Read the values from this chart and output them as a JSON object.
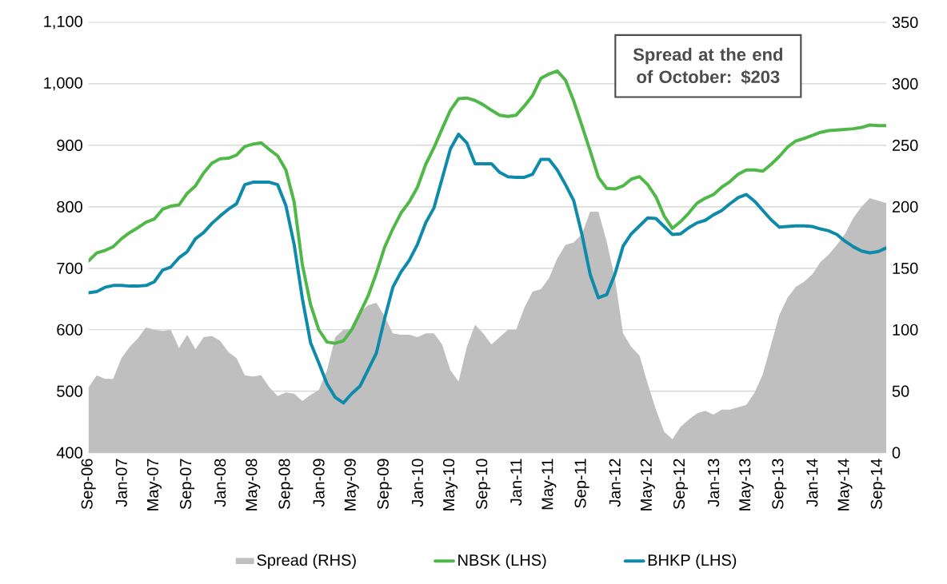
{
  "chart_data": {
    "type": "line",
    "categories": [
      "Sep-06",
      null,
      null,
      null,
      "Jan-07",
      null,
      null,
      null,
      "May-07",
      null,
      null,
      null,
      "Sep-07",
      null,
      null,
      null,
      "Jan-08",
      null,
      null,
      null,
      "May-08",
      null,
      null,
      null,
      "Sep-08",
      null,
      null,
      null,
      "Jan-09",
      null,
      null,
      null,
      "May-09",
      null,
      null,
      null,
      "Sep-09",
      null,
      null,
      null,
      "Jan-10",
      null,
      null,
      null,
      "May-10",
      null,
      null,
      null,
      "Sep-10",
      null,
      null,
      null,
      "Jan-11",
      null,
      null,
      null,
      "May-11",
      null,
      null,
      null,
      "Sep-11",
      null,
      null,
      null,
      "Jan-12",
      null,
      null,
      null,
      "May-12",
      null,
      null,
      null,
      "Sep-12",
      null,
      null,
      null,
      "Jan-13",
      null,
      null,
      null,
      "May-13",
      null,
      null,
      null,
      "Sep-13",
      null,
      null,
      null,
      "Jan-14",
      null,
      null,
      null,
      "May-14",
      null,
      null,
      null,
      "Sep-14",
      null
    ],
    "series": [
      {
        "name": "Spread (RHS)",
        "type": "area",
        "axis": "y2",
        "color": "#bfbfbf",
        "values": [
          53,
          63,
          60,
          60,
          77,
          86,
          93,
          102,
          100,
          99,
          100,
          85,
          96,
          84,
          94,
          95,
          91,
          82,
          77,
          63,
          62,
          63,
          53,
          46,
          49,
          48,
          42,
          47,
          51,
          67,
          94,
          100,
          101,
          114,
          120,
          122,
          111,
          97,
          96,
          96,
          94,
          97,
          97,
          88,
          67,
          58,
          86,
          104,
          97,
          88,
          94,
          100,
          100,
          118,
          131,
          133,
          142,
          158,
          169,
          171,
          178,
          196,
          196,
          172,
          142,
          97,
          86,
          79,
          56,
          35,
          17,
          11,
          21,
          27,
          32,
          34,
          31,
          35,
          35,
          37,
          39,
          49,
          64,
          88,
          112,
          126,
          135,
          139,
          145,
          155,
          161,
          169,
          178,
          191,
          200,
          207,
          205,
          203
        ]
      },
      {
        "name": "NBSK (LHS)",
        "color": "#50b848",
        "values": [
          712,
          725,
          729,
          735,
          748,
          758,
          766,
          775,
          780,
          796,
          801,
          803,
          822,
          834,
          855,
          871,
          878,
          879,
          884,
          898,
          902,
          904,
          893,
          883,
          860,
          808,
          706,
          641,
          600,
          580,
          578,
          582,
          600,
          627,
          655,
          692,
          734,
          764,
          790,
          808,
          832,
          869,
          896,
          927,
          957,
          976,
          977,
          973,
          966,
          957,
          949,
          947,
          949,
          964,
          981,
          1009,
          1016,
          1021,
          1006,
          972,
          932,
          891,
          848,
          830,
          829,
          834,
          845,
          849,
          836,
          816,
          785,
          765,
          776,
          790,
          806,
          814,
          820,
          832,
          841,
          853,
          860,
          860,
          858,
          869,
          882,
          897,
          907,
          911,
          916,
          921,
          924,
          925,
          926,
          927,
          929,
          933,
          932,
          932
        ]
      },
      {
        "name": "BHKP (LHS)",
        "color": "#0e8aab",
        "values": [
          660,
          662,
          669,
          672,
          672,
          671,
          671,
          672,
          678,
          697,
          702,
          717,
          727,
          748,
          758,
          773,
          785,
          796,
          805,
          836,
          840,
          840,
          840,
          836,
          802,
          739,
          651,
          579,
          546,
          512,
          490,
          481,
          496,
          508,
          535,
          562,
          618,
          669,
          694,
          713,
          739,
          774,
          798,
          846,
          894,
          918,
          904,
          870,
          870,
          870,
          856,
          849,
          848,
          848,
          853,
          877,
          877,
          860,
          836,
          810,
          755,
          690,
          652,
          657,
          690,
          736,
          756,
          769,
          782,
          781,
          768,
          755,
          756,
          766,
          774,
          778,
          787,
          794,
          805,
          815,
          820,
          809,
          794,
          779,
          767,
          768,
          769,
          769,
          768,
          764,
          761,
          755,
          744,
          735,
          728,
          725,
          727,
          733
        ]
      }
    ],
    "ylim": [
      400,
      1100
    ],
    "yticks": [
      400,
      500,
      600,
      700,
      800,
      900,
      {
        "value": 1000,
        "label": "1,000"
      },
      {
        "value": 1100,
        "label": "1,100"
      }
    ],
    "y2lim": [
      0,
      350
    ],
    "y2ticks": [
      0,
      50,
      100,
      150,
      200,
      250,
      300,
      350
    ],
    "grid": "y",
    "legend": "bottom",
    "annotations": [
      "**Spread at the end of October: $203**"
    ]
  }
}
